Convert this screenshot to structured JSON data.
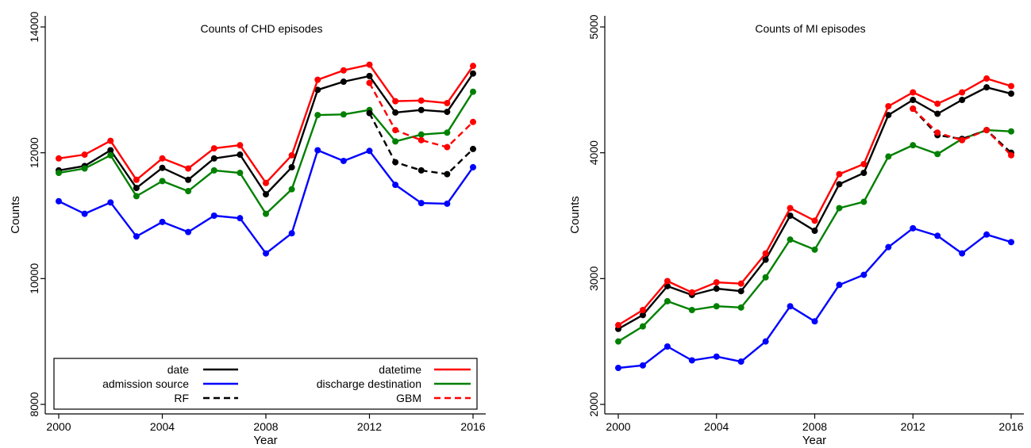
{
  "chart_data": [
    {
      "type": "line",
      "title": "Counts of CHD episodes",
      "xlabel": "Year",
      "ylabel": "Counts",
      "xlim": [
        2000,
        2016
      ],
      "ylim": [
        8000,
        14000
      ],
      "xticks": [
        2000,
        2004,
        2008,
        2012,
        2016
      ],
      "yticks": [
        8000,
        10000,
        12000,
        14000
      ],
      "grid": false,
      "legend": {
        "placement": "bottom-inside",
        "entries": [
          {
            "name": "date",
            "color": "#000000",
            "dash": "solid"
          },
          {
            "name": "datetime",
            "color": "#ff0000",
            "dash": "solid"
          },
          {
            "name": "admission source",
            "color": "#0000ff",
            "dash": "solid"
          },
          {
            "name": "discharge destination",
            "color": "#008000",
            "dash": "solid"
          },
          {
            "name": "RF",
            "color": "#000000",
            "dash": "dashed"
          },
          {
            "name": "GBM",
            "color": "#ff0000",
            "dash": "dashed"
          }
        ]
      },
      "series": [
        {
          "name": "date",
          "color": "#000000",
          "dash": "solid",
          "x": [
            2000,
            2001,
            2002,
            2003,
            2004,
            2005,
            2006,
            2007,
            2008,
            2009,
            2010,
            2011,
            2012,
            2013,
            2014,
            2015,
            2016
          ],
          "values": [
            11720,
            11790,
            12040,
            11440,
            11760,
            11570,
            11910,
            11970,
            11340,
            11770,
            13000,
            13130,
            13220,
            12640,
            12680,
            12650,
            13260
          ]
        },
        {
          "name": "datetime",
          "color": "#ff0000",
          "dash": "solid",
          "x": [
            2000,
            2001,
            2002,
            2003,
            2004,
            2005,
            2006,
            2007,
            2008,
            2009,
            2010,
            2011,
            2012,
            2013,
            2014,
            2015,
            2016
          ],
          "values": [
            11910,
            11970,
            12190,
            11570,
            11910,
            11750,
            12070,
            12120,
            11520,
            11960,
            13160,
            13310,
            13400,
            12820,
            12830,
            12790,
            13380
          ]
        },
        {
          "name": "admission source",
          "color": "#0000ff",
          "dash": "solid",
          "x": [
            2000,
            2001,
            2002,
            2003,
            2004,
            2005,
            2006,
            2007,
            2008,
            2009,
            2010,
            2011,
            2012,
            2013,
            2014,
            2015,
            2016
          ],
          "values": [
            11230,
            11030,
            11210,
            10670,
            10900,
            10740,
            11000,
            10960,
            10400,
            10720,
            12040,
            11870,
            12030,
            11490,
            11200,
            11190,
            11770
          ]
        },
        {
          "name": "discharge destination",
          "color": "#008000",
          "dash": "solid",
          "x": [
            2000,
            2001,
            2002,
            2003,
            2004,
            2005,
            2006,
            2007,
            2008,
            2009,
            2010,
            2011,
            2012,
            2013,
            2014,
            2015,
            2016
          ],
          "values": [
            11680,
            11750,
            11960,
            11310,
            11550,
            11390,
            11720,
            11680,
            11030,
            11420,
            12600,
            12610,
            12680,
            12180,
            12290,
            12320,
            12970
          ]
        },
        {
          "name": "RF",
          "color": "#000000",
          "dash": "dashed",
          "x": [
            2012,
            2013,
            2014,
            2015,
            2016
          ],
          "values": [
            12630,
            11850,
            11720,
            11660,
            12060
          ]
        },
        {
          "name": "GBM",
          "color": "#ff0000",
          "dash": "dashed",
          "x": [
            2012,
            2013,
            2014,
            2015,
            2016
          ],
          "values": [
            13110,
            12360,
            12200,
            12090,
            12490
          ]
        }
      ]
    },
    {
      "type": "line",
      "title": "Counts of MI episodes",
      "xlabel": "Year",
      "ylabel": "Counts",
      "xlim": [
        2000,
        2016
      ],
      "ylim": [
        2000,
        5000
      ],
      "xticks": [
        2000,
        2004,
        2008,
        2012,
        2016
      ],
      "yticks": [
        2000,
        3000,
        4000,
        5000
      ],
      "grid": false,
      "series": [
        {
          "name": "date",
          "color": "#000000",
          "dash": "solid",
          "x": [
            2000,
            2001,
            2002,
            2003,
            2004,
            2005,
            2006,
            2007,
            2008,
            2009,
            2010,
            2011,
            2012,
            2013,
            2014,
            2015,
            2016
          ],
          "values": [
            2600,
            2710,
            2940,
            2870,
            2920,
            2900,
            3150,
            3500,
            3380,
            3750,
            3840,
            4300,
            4420,
            4310,
            4420,
            4520,
            4470
          ]
        },
        {
          "name": "datetime",
          "color": "#ff0000",
          "dash": "solid",
          "x": [
            2000,
            2001,
            2002,
            2003,
            2004,
            2005,
            2006,
            2007,
            2008,
            2009,
            2010,
            2011,
            2012,
            2013,
            2014,
            2015,
            2016
          ],
          "values": [
            2630,
            2750,
            2980,
            2890,
            2970,
            2960,
            3200,
            3560,
            3460,
            3830,
            3910,
            4370,
            4480,
            4390,
            4480,
            4590,
            4530
          ]
        },
        {
          "name": "admission source",
          "color": "#0000ff",
          "dash": "solid",
          "x": [
            2000,
            2001,
            2002,
            2003,
            2004,
            2005,
            2006,
            2007,
            2008,
            2009,
            2010,
            2011,
            2012,
            2013,
            2014,
            2015,
            2016
          ],
          "values": [
            2290,
            2310,
            2460,
            2350,
            2380,
            2340,
            2500,
            2780,
            2660,
            2950,
            3030,
            3250,
            3400,
            3340,
            3200,
            3350,
            3290
          ]
        },
        {
          "name": "discharge destination",
          "color": "#008000",
          "dash": "solid",
          "x": [
            2000,
            2001,
            2002,
            2003,
            2004,
            2005,
            2006,
            2007,
            2008,
            2009,
            2010,
            2011,
            2012,
            2013,
            2014,
            2015,
            2016
          ],
          "values": [
            2500,
            2620,
            2820,
            2750,
            2780,
            2770,
            3010,
            3310,
            3230,
            3560,
            3610,
            3970,
            4060,
            3990,
            4110,
            4180,
            4170
          ]
        },
        {
          "name": "RF",
          "color": "#000000",
          "dash": "dashed",
          "x": [
            2012,
            2013,
            2014,
            2015,
            2016
          ],
          "values": [
            4350,
            4140,
            4110,
            4180,
            4000
          ]
        },
        {
          "name": "GBM",
          "color": "#ff0000",
          "dash": "dashed",
          "x": [
            2012,
            2013,
            2014,
            2015,
            2016
          ],
          "values": [
            4350,
            4160,
            4100,
            4180,
            3980
          ]
        }
      ]
    }
  ]
}
